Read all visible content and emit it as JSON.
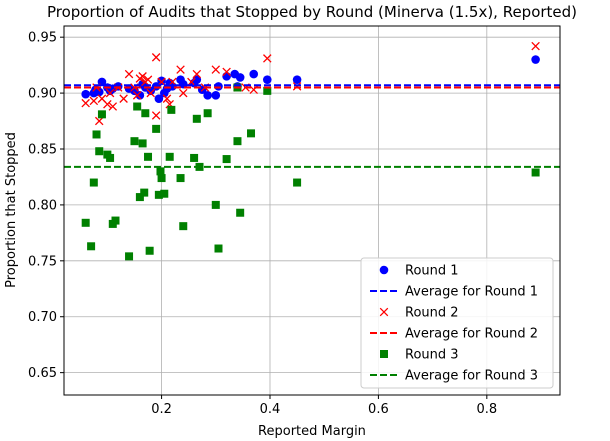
{
  "chart_data": {
    "type": "scatter",
    "title": "Proportion of Audits that Stopped by Round (Minerva (1.5x), Reported)",
    "xlabel": "Reported Margin",
    "ylabel": "Proportion that Stopped",
    "xlim": [
      0.02,
      0.935
    ],
    "ylim": [
      0.63,
      0.96
    ],
    "xticks": [
      0.2,
      0.4,
      0.6,
      0.8
    ],
    "xtick_labels": [
      "0.2",
      "0.4",
      "0.6",
      "0.8"
    ],
    "yticks": [
      0.65,
      0.7,
      0.75,
      0.8,
      0.85,
      0.9,
      0.95
    ],
    "ytick_labels": [
      "0.65",
      "0.70",
      "0.75",
      "0.80",
      "0.85",
      "0.90",
      "0.95"
    ],
    "grid": true,
    "legend_position": "lower right",
    "series": [
      {
        "name": "Round 1",
        "marker": "circle",
        "color": "#0000ff",
        "points": [
          [
            0.06,
            0.899
          ],
          [
            0.075,
            0.9
          ],
          [
            0.078,
            0.903
          ],
          [
            0.085,
            0.901
          ],
          [
            0.09,
            0.91
          ],
          [
            0.1,
            0.905
          ],
          [
            0.105,
            0.902
          ],
          [
            0.11,
            0.904
          ],
          [
            0.12,
            0.906
          ],
          [
            0.14,
            0.904
          ],
          [
            0.15,
            0.902
          ],
          [
            0.16,
            0.898
          ],
          [
            0.165,
            0.908
          ],
          [
            0.17,
            0.905
          ],
          [
            0.18,
            0.902
          ],
          [
            0.19,
            0.906
          ],
          [
            0.195,
            0.895
          ],
          [
            0.2,
            0.911
          ],
          [
            0.205,
            0.9
          ],
          [
            0.21,
            0.904
          ],
          [
            0.215,
            0.909
          ],
          [
            0.22,
            0.906
          ],
          [
            0.235,
            0.912
          ],
          [
            0.24,
            0.908
          ],
          [
            0.26,
            0.909
          ],
          [
            0.265,
            0.912
          ],
          [
            0.275,
            0.903
          ],
          [
            0.285,
            0.898
          ],
          [
            0.3,
            0.898
          ],
          [
            0.305,
            0.906
          ],
          [
            0.32,
            0.915
          ],
          [
            0.335,
            0.917
          ],
          [
            0.34,
            0.906
          ],
          [
            0.345,
            0.914
          ],
          [
            0.37,
            0.917
          ],
          [
            0.395,
            0.912
          ],
          [
            0.45,
            0.912
          ],
          [
            0.89,
            0.93
          ]
        ]
      },
      {
        "name": "Average for Round 1",
        "type": "hline",
        "style": "dashed",
        "color": "#0000ff",
        "y": 0.907
      },
      {
        "name": "Round 2",
        "marker": "x",
        "color": "#ff0000",
        "points": [
          [
            0.06,
            0.891
          ],
          [
            0.075,
            0.893
          ],
          [
            0.08,
            0.905
          ],
          [
            0.085,
            0.875
          ],
          [
            0.09,
            0.895
          ],
          [
            0.1,
            0.89
          ],
          [
            0.105,
            0.9
          ],
          [
            0.11,
            0.888
          ],
          [
            0.12,
            0.905
          ],
          [
            0.13,
            0.895
          ],
          [
            0.14,
            0.917
          ],
          [
            0.15,
            0.905
          ],
          [
            0.155,
            0.898
          ],
          [
            0.16,
            0.913
          ],
          [
            0.165,
            0.915
          ],
          [
            0.17,
            0.91
          ],
          [
            0.175,
            0.912
          ],
          [
            0.18,
            0.9
          ],
          [
            0.19,
            0.88
          ],
          [
            0.19,
            0.932
          ],
          [
            0.2,
            0.91
          ],
          [
            0.21,
            0.895
          ],
          [
            0.215,
            0.89
          ],
          [
            0.22,
            0.91
          ],
          [
            0.235,
            0.921
          ],
          [
            0.24,
            0.9
          ],
          [
            0.255,
            0.91
          ],
          [
            0.265,
            0.917
          ],
          [
            0.28,
            0.905
          ],
          [
            0.3,
            0.921
          ],
          [
            0.32,
            0.919
          ],
          [
            0.34,
            0.905
          ],
          [
            0.355,
            0.905
          ],
          [
            0.37,
            0.903
          ],
          [
            0.395,
            0.931
          ],
          [
            0.45,
            0.906
          ],
          [
            0.89,
            0.942
          ]
        ]
      },
      {
        "name": "Average for Round 2",
        "type": "hline",
        "style": "dashed",
        "color": "#ff0000",
        "y": 0.905
      },
      {
        "name": "Round 3",
        "marker": "square",
        "color": "#008000",
        "points": [
          [
            0.06,
            0.784
          ],
          [
            0.07,
            0.763
          ],
          [
            0.075,
            0.82
          ],
          [
            0.08,
            0.863
          ],
          [
            0.085,
            0.848
          ],
          [
            0.09,
            0.881
          ],
          [
            0.1,
            0.845
          ],
          [
            0.105,
            0.842
          ],
          [
            0.11,
            0.783
          ],
          [
            0.115,
            0.786
          ],
          [
            0.14,
            0.754
          ],
          [
            0.15,
            0.857
          ],
          [
            0.155,
            0.888
          ],
          [
            0.16,
            0.807
          ],
          [
            0.165,
            0.855
          ],
          [
            0.168,
            0.811
          ],
          [
            0.17,
            0.882
          ],
          [
            0.175,
            0.843
          ],
          [
            0.178,
            0.759
          ],
          [
            0.19,
            0.868
          ],
          [
            0.195,
            0.809
          ],
          [
            0.198,
            0.83
          ],
          [
            0.2,
            0.824
          ],
          [
            0.205,
            0.81
          ],
          [
            0.215,
            0.843
          ],
          [
            0.218,
            0.885
          ],
          [
            0.235,
            0.824
          ],
          [
            0.24,
            0.781
          ],
          [
            0.26,
            0.842
          ],
          [
            0.265,
            0.877
          ],
          [
            0.27,
            0.834
          ],
          [
            0.285,
            0.882
          ],
          [
            0.3,
            0.8
          ],
          [
            0.305,
            0.761
          ],
          [
            0.32,
            0.841
          ],
          [
            0.34,
            0.857
          ],
          [
            0.345,
            0.793
          ],
          [
            0.34,
            0.905
          ],
          [
            0.365,
            0.864
          ],
          [
            0.395,
            0.902
          ],
          [
            0.45,
            0.82
          ],
          [
            0.89,
            0.829
          ]
        ]
      },
      {
        "name": "Average for Round 3",
        "type": "hline",
        "style": "dashed",
        "color": "#008000",
        "y": 0.834
      }
    ]
  }
}
